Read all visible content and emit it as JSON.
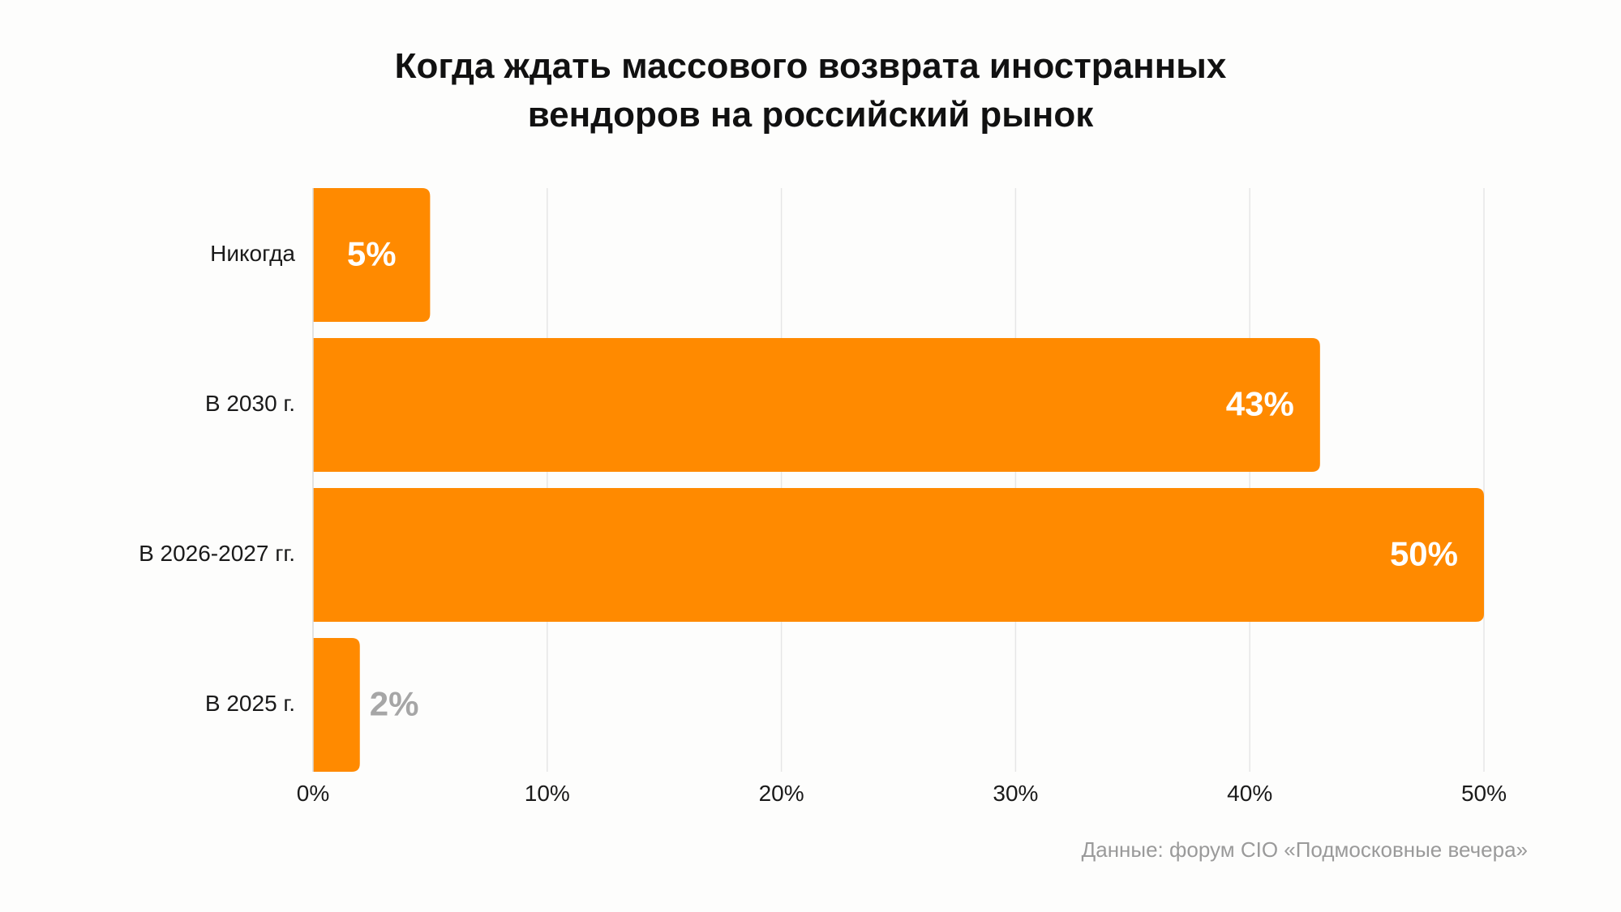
{
  "chart_data": {
    "type": "bar",
    "orientation": "horizontal",
    "title_lines": [
      "Когда ждать массового возврата иностранных",
      "вендоров на российский рынок"
    ],
    "categories": [
      "Никогда",
      "В 2030 г.",
      "В 2026-2027 гг.",
      "В 2025 г."
    ],
    "values": [
      5,
      43,
      50,
      2
    ],
    "data_labels": [
      "5%",
      "43%",
      "50%",
      "2%"
    ],
    "xlim": [
      0,
      50
    ],
    "x_ticks": [
      0,
      10,
      20,
      30,
      40,
      50
    ],
    "x_tick_labels": [
      "0%",
      "10%",
      "20%",
      "30%",
      "40%",
      "50%"
    ],
    "grid": true,
    "legend": "none",
    "bar_color": "#ff8a00",
    "label_color_inside": "#ffffff",
    "label_color_outside": "#a6a6a6"
  },
  "source_note": "Данные: форум CIO «Подмосковные вечера»"
}
